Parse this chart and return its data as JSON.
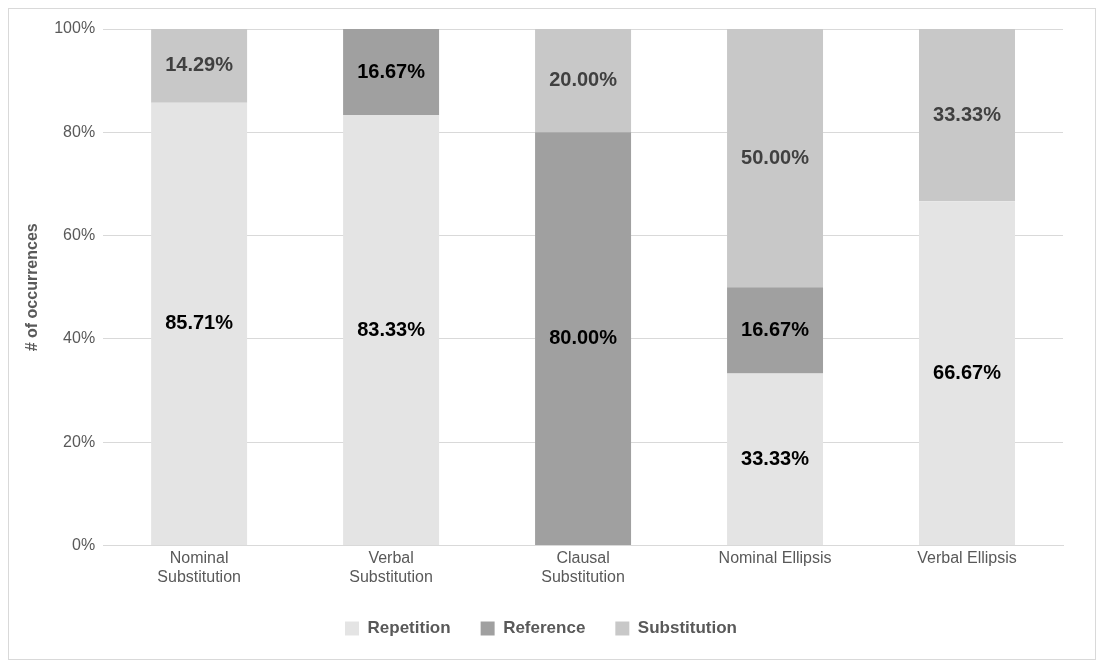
{
  "chart_data": {
    "type": "bar",
    "stacked": true,
    "ylabel": "# of occurrences",
    "categories": [
      "Nominal Substitution",
      "Verbal Substitution",
      "Clausal Substitution",
      "Nominal Ellipsis",
      "Verbal Ellipsis"
    ],
    "series": [
      {
        "name": "Repetition",
        "color": "#e4e4e4",
        "values": [
          85.71,
          83.33,
          0,
          33.33,
          66.67
        ],
        "value_labels": [
          "85.71%",
          "83.33%",
          null,
          "33.33%",
          "66.67%"
        ]
      },
      {
        "name": "Reference",
        "color": "#a0a0a0",
        "values": [
          0,
          16.67,
          80,
          16.67,
          0
        ],
        "value_labels": [
          null,
          "16.67%",
          "80.00%",
          "16.67%",
          null
        ]
      },
      {
        "name": "Substitution",
        "color": "#c8c8c8",
        "values": [
          14.29,
          0,
          20,
          50,
          33.33
        ],
        "value_labels": [
          "14.29%",
          null,
          "20.00%",
          "50.00%",
          "33.33%"
        ]
      }
    ],
    "ylim": [
      0,
      100
    ],
    "yticks": [
      {
        "value": 0,
        "label": "0%"
      },
      {
        "value": 20,
        "label": "20%"
      },
      {
        "value": 40,
        "label": "40%"
      },
      {
        "value": 60,
        "label": "60%"
      },
      {
        "value": 80,
        "label": "80%"
      },
      {
        "value": 100,
        "label": "100%"
      }
    ],
    "grid": "y",
    "legend": "bottom"
  }
}
